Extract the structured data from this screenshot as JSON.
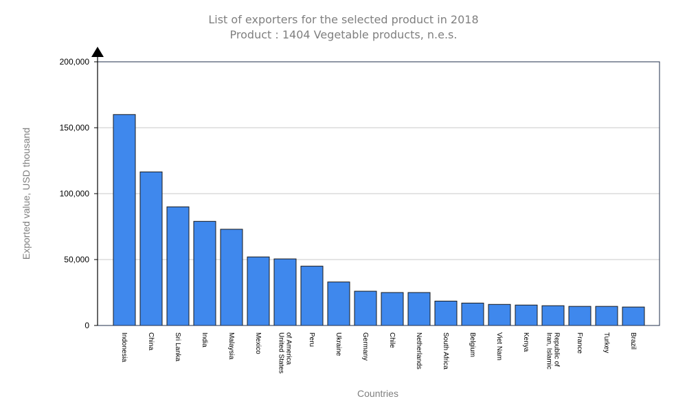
{
  "chart_data": {
    "type": "bar",
    "title": "List of exporters for the selected product in 2018",
    "subtitle": "Product : 1404 Vegetable products, n.e.s.",
    "xlabel": "Countries",
    "ylabel": "Exported value, USD thousand",
    "ylim": [
      0,
      200000
    ],
    "yticks": [
      "0",
      "50,000",
      "100,000",
      "150,000",
      "200,000"
    ],
    "ytick_values": [
      0,
      50000,
      100000,
      150000,
      200000
    ],
    "grid": true,
    "bar_color": "#3f88ed",
    "categories": [
      [
        "Indonesia"
      ],
      [
        "China"
      ],
      [
        "Sri Lanka"
      ],
      [
        "India"
      ],
      [
        "Malaysia"
      ],
      [
        "Mexico"
      ],
      [
        "United States",
        "of America"
      ],
      [
        "Peru"
      ],
      [
        "Ukraine"
      ],
      [
        "Germany"
      ],
      [
        "Chile"
      ],
      [
        "Netherlands"
      ],
      [
        "South Africa"
      ],
      [
        "Belgium"
      ],
      [
        "Viet Nam"
      ],
      [
        "Kenya"
      ],
      [
        "Iran, Islamic",
        "Republic of"
      ],
      [
        "France"
      ],
      [
        "Turkey"
      ],
      [
        "Brazil"
      ]
    ],
    "values": [
      160000,
      116500,
      90000,
      79000,
      73000,
      52000,
      50500,
      45000,
      33000,
      26000,
      25000,
      25000,
      18500,
      17000,
      16000,
      15500,
      15000,
      14500,
      14500,
      14000
    ]
  }
}
